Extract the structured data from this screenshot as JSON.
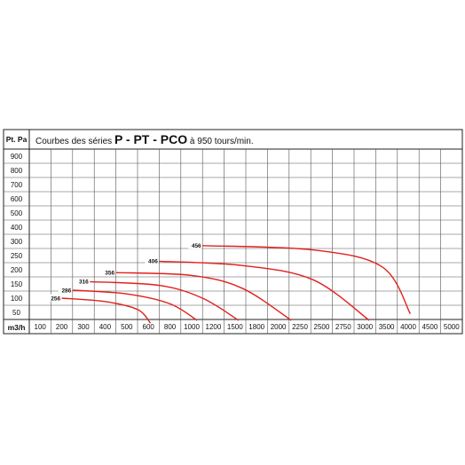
{
  "chart_data": {
    "type": "line",
    "title": {
      "prefix": "Courbes des séries ",
      "series": "P - PT - PCO",
      "suffix": " à 950 tours/min."
    },
    "ylabel": "Pt. Pa",
    "xlabel": "m3/h",
    "y_ticks": [
      900,
      800,
      700,
      600,
      500,
      400,
      300,
      250,
      200,
      150,
      100,
      50
    ],
    "x_ticks": [
      100,
      200,
      300,
      400,
      500,
      600,
      800,
      1000,
      1200,
      1500,
      1800,
      2000,
      2250,
      2500,
      2750,
      3000,
      3500,
      4000,
      4500,
      5000
    ],
    "grid": true,
    "series_color": "#e0201b",
    "series": [
      {
        "name": "256",
        "points": [
          [
            200,
            100
          ],
          [
            400,
            88
          ],
          [
            550,
            60
          ],
          [
            620,
            12
          ]
        ]
      },
      {
        "name": "286",
        "points": [
          [
            250,
            128
          ],
          [
            500,
            115
          ],
          [
            800,
            80
          ],
          [
            1050,
            22
          ]
        ]
      },
      {
        "name": "316",
        "points": [
          [
            330,
            158
          ],
          [
            700,
            145
          ],
          [
            1100,
            100
          ],
          [
            1550,
            22
          ]
        ]
      },
      {
        "name": "356",
        "points": [
          [
            450,
            190
          ],
          [
            1000,
            180
          ],
          [
            1600,
            135
          ],
          [
            2150,
            22
          ]
        ]
      },
      {
        "name": "406",
        "points": [
          [
            700,
            230
          ],
          [
            1600,
            215
          ],
          [
            2400,
            165
          ],
          [
            3100,
            22
          ]
        ]
      },
      {
        "name": "456",
        "points": [
          [
            1100,
            285
          ],
          [
            2400,
            270
          ],
          [
            3400,
            210
          ],
          [
            4050,
            45
          ]
        ]
      }
    ]
  }
}
